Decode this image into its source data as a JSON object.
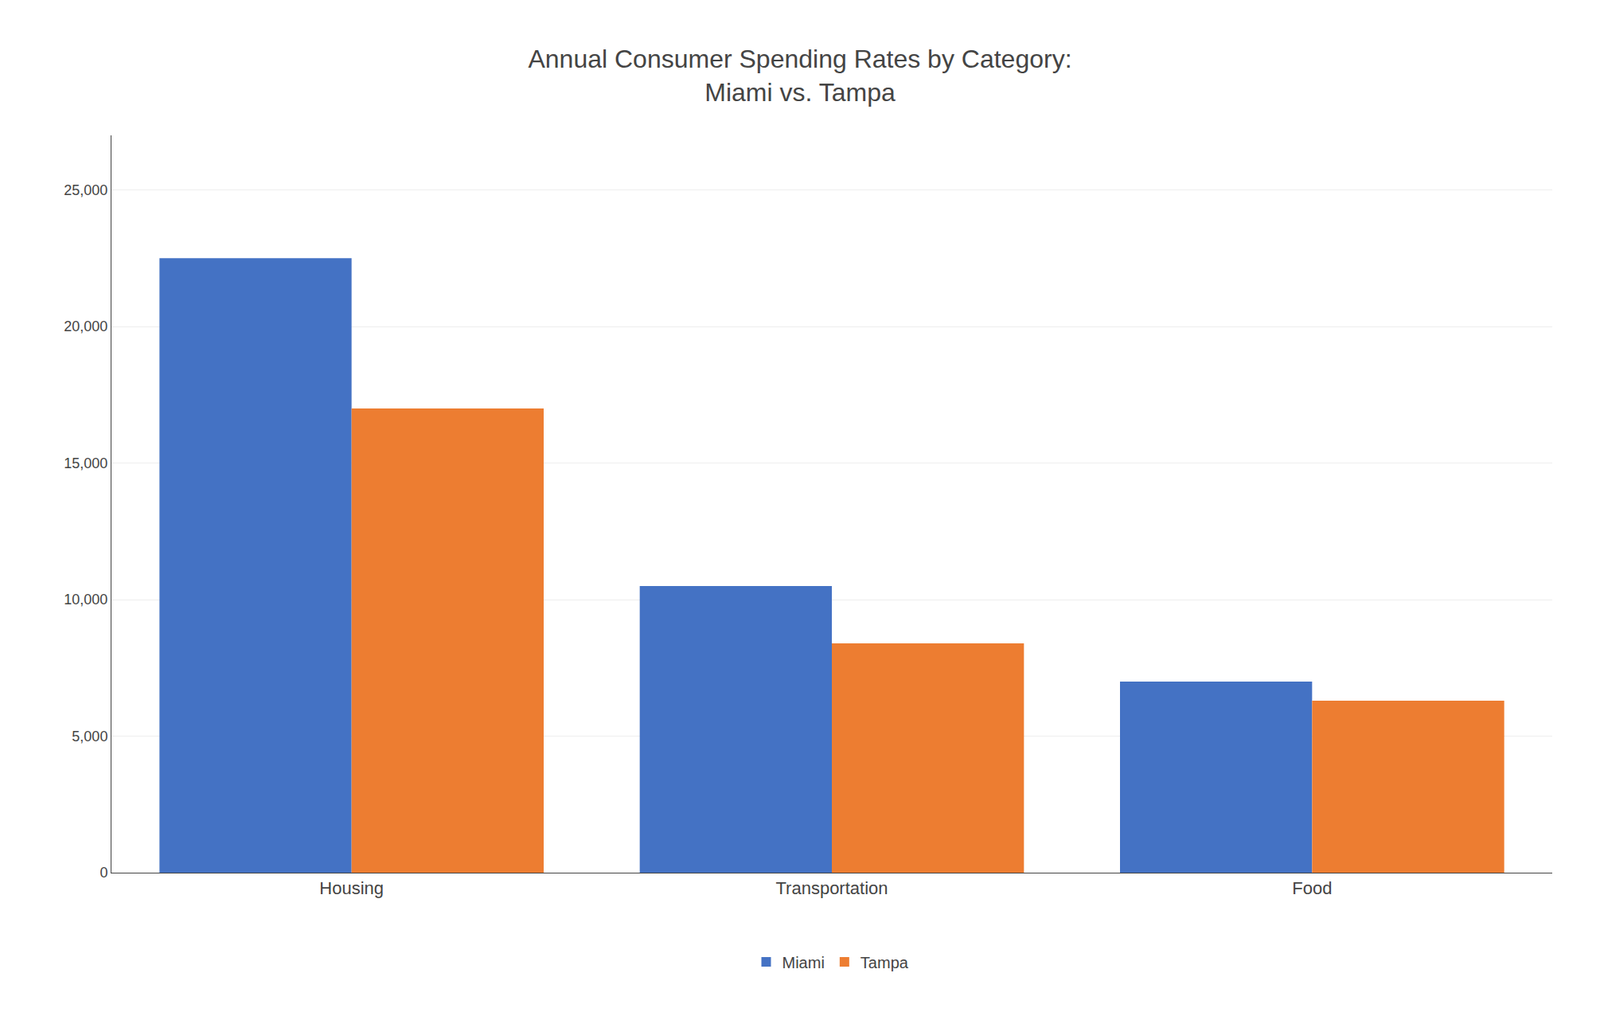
{
  "chart_data": {
    "type": "bar",
    "title": "Annual Consumer Spending Rates by Category:\nMiami vs. Tampa",
    "categories": [
      "Housing",
      "Transportation",
      "Food"
    ],
    "series": [
      {
        "name": "Miami",
        "color": "#4472C4",
        "values": [
          22500,
          10500,
          7000
        ]
      },
      {
        "name": "Tampa",
        "color": "#ED7D31",
        "values": [
          17000,
          8400,
          6300
        ]
      }
    ],
    "ylim": [
      0,
      27000
    ],
    "yticks": [
      0,
      {
        "value": 5000,
        "label": "5,000"
      },
      {
        "value": 10000,
        "label": "10,000"
      },
      {
        "value": 15000,
        "label": "15,000"
      },
      {
        "value": 20000,
        "label": "20,000"
      },
      {
        "value": 25000,
        "label": "25,000"
      }
    ],
    "grid": true,
    "legend": "bottom"
  }
}
